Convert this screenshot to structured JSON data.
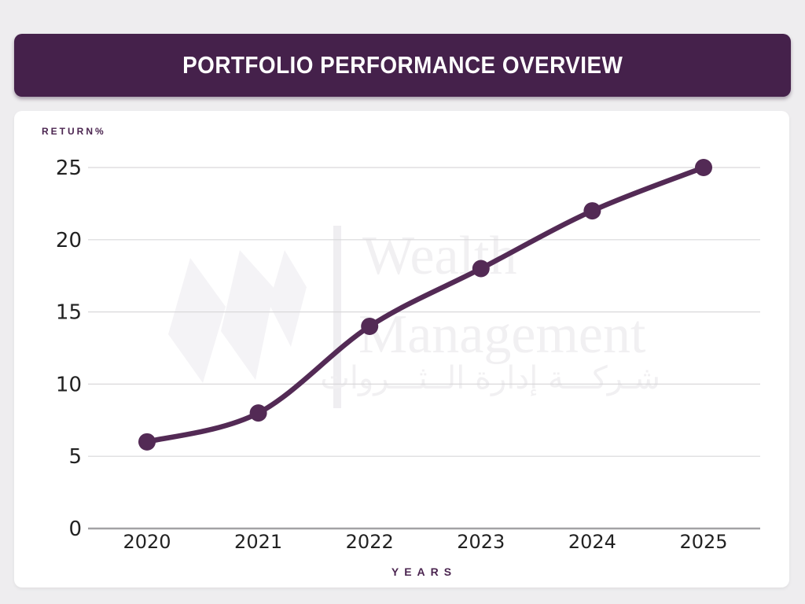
{
  "window": {
    "background": "#eeedef"
  },
  "header": {
    "title": "PORTFOLIO PERFORMANCE OVERVIEW",
    "background": "#45214b",
    "text_color": "#ffffff"
  },
  "chart_data": {
    "type": "line",
    "title": "PORTFOLIO PERFORMANCE OVERVIEW",
    "categories": [
      "2020",
      "2021",
      "2022",
      "2023",
      "2024",
      "2025"
    ],
    "values": [
      6,
      8,
      14,
      18,
      22,
      25
    ],
    "xlabel": "YEARS",
    "ylabel": "RETURN%",
    "ylim": [
      0,
      25
    ],
    "yticks": [
      0,
      5,
      10,
      15,
      20,
      25
    ],
    "grid": true,
    "legend_position": "none",
    "line_color": "#532a55",
    "marker_color": "#532a55",
    "gridline_color": "#d9d8da",
    "baseline_color": "#a3a2a4",
    "tick_color": "#222222",
    "axis_title_color": "#4b2550"
  },
  "watermark": {
    "logo_icon": "three-diamonds-logo",
    "line1": "Wealth",
    "line2": "Management",
    "line3": "شـركـــة إدارة الــثـــروات",
    "color": "#f1f0f2"
  }
}
